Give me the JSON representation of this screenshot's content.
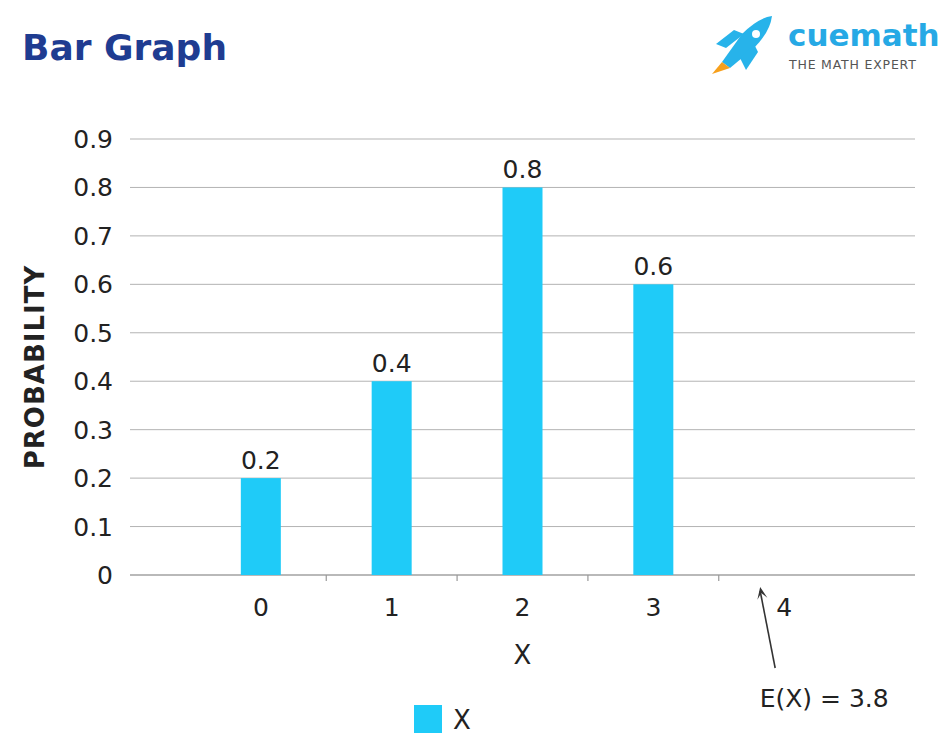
{
  "chart_data": {
    "type": "bar",
    "title": "Bar Graph",
    "logo_text": "cuemath",
    "logo_subtext": "THE MATH EXPERT",
    "x_label": "X",
    "y_label": "PROBABILITY",
    "annotation": "E(X) = 3.8",
    "categories": [
      "0",
      "1",
      "2",
      "3",
      "4"
    ],
    "series": [
      {
        "name": "X",
        "color": "#1fcbf8",
        "values": [
          0.2,
          0.4,
          0.8,
          0.6,
          null
        ]
      }
    ],
    "ylim": [
      0,
      0.9
    ],
    "yticks": [
      0,
      0.1,
      0.2,
      0.3,
      0.4,
      0.5,
      0.6,
      0.7,
      0.8,
      0.9
    ],
    "grid": true,
    "legend": "bottom",
    "data_labels": true
  }
}
